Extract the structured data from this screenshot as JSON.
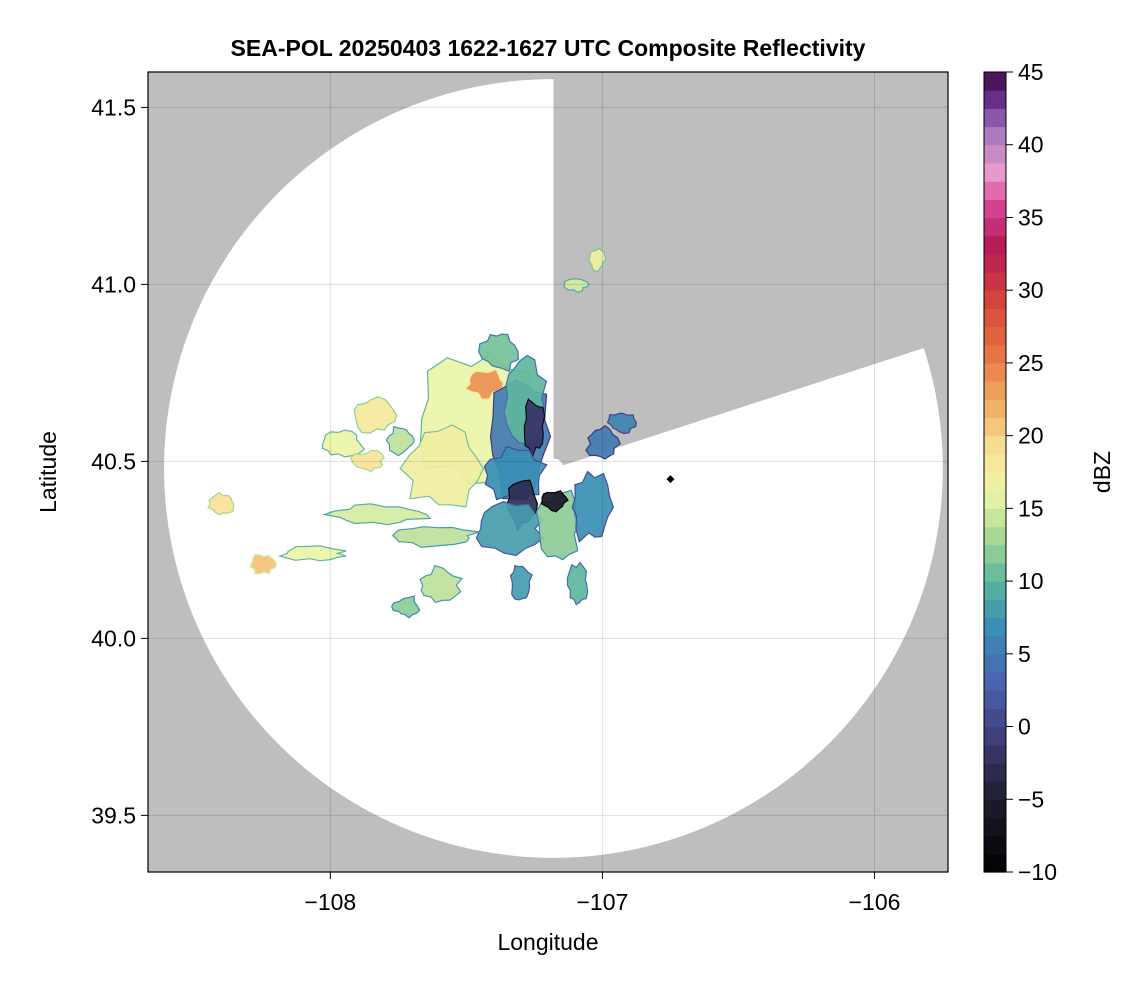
{
  "chart_data": {
    "type": "heatmap",
    "title": "SEA-POL 20250403 1622-1627 UTC Composite Reflectivity",
    "xlabel": "Longitude",
    "ylabel": "Latitude",
    "xlim": [
      -108.67,
      -105.73
    ],
    "ylim": [
      39.34,
      41.6
    ],
    "xticks": [
      -108,
      -107,
      -106
    ],
    "xtick_labels": [
      "−108",
      "−107",
      "−106"
    ],
    "yticks": [
      39.5,
      40.0,
      40.5,
      41.0,
      41.5
    ],
    "ytick_labels": [
      "39.5",
      "40.0",
      "40.5",
      "41.0",
      "41.5"
    ],
    "grid": true,
    "background_color": "#bebebe",
    "coverage_color": "#ffffff",
    "radar_center": [
      -107.18,
      40.48
    ],
    "radar_range_lat_deg": 1.1,
    "blocked_sectors": [
      {
        "from_point": [
          -106.84,
          41.52
        ],
        "to_point": [
          -107.14,
          40.49
        ]
      },
      {
        "from_point": [
          -106.05,
          41.12
        ],
        "to_point": [
          -107.18,
          40.5
        ]
      }
    ],
    "colorbar": {
      "label": "dBZ",
      "min": -10,
      "max": 45,
      "ticks": [
        -10,
        -5,
        0,
        5,
        10,
        15,
        20,
        25,
        30,
        35,
        40,
        45
      ],
      "tick_labels": [
        "−10",
        "−5",
        "0",
        "5",
        "10",
        "15",
        "20",
        "25",
        "30",
        "35",
        "40",
        "45"
      ],
      "step": 1.25,
      "colormap": "spectral-reversed",
      "color_stops": [
        {
          "v": -10,
          "c": "#000000"
        },
        {
          "v": -5,
          "c": "#1c1c2e"
        },
        {
          "v": -1,
          "c": "#3e3b74"
        },
        {
          "v": 3,
          "c": "#4a63b0"
        },
        {
          "v": 7,
          "c": "#3a8fb4"
        },
        {
          "v": 10,
          "c": "#5db69d"
        },
        {
          "v": 13,
          "c": "#a6d794"
        },
        {
          "v": 16,
          "c": "#ecf5a8"
        },
        {
          "v": 19,
          "c": "#f8e397"
        },
        {
          "v": 22,
          "c": "#f1b065"
        },
        {
          "v": 26,
          "c": "#e66f42"
        },
        {
          "v": 30,
          "c": "#cf3c3f"
        },
        {
          "v": 33,
          "c": "#b31a55"
        },
        {
          "v": 36,
          "c": "#d94699"
        },
        {
          "v": 38,
          "c": "#ea9ccb"
        },
        {
          "v": 41,
          "c": "#a376be"
        },
        {
          "v": 43,
          "c": "#6a318d"
        },
        {
          "v": 45,
          "c": "#3b0a46"
        }
      ]
    },
    "echo_regions": [
      {
        "lon": -107.45,
        "lat": 40.62,
        "rlon": 0.24,
        "rlat": 0.2,
        "dbz": 16
      },
      {
        "lon": -107.43,
        "lat": 40.72,
        "rlon": 0.07,
        "rlat": 0.04,
        "dbz": 24
      },
      {
        "lon": -107.58,
        "lat": 40.48,
        "rlon": 0.15,
        "rlat": 0.12,
        "dbz": 17
      },
      {
        "lon": -107.3,
        "lat": 40.57,
        "rlon": 0.12,
        "rlat": 0.18,
        "dbz": 5
      },
      {
        "lon": -107.29,
        "lat": 40.68,
        "rlon": 0.08,
        "rlat": 0.12,
        "dbz": 10
      },
      {
        "lon": -107.25,
        "lat": 40.6,
        "rlon": 0.04,
        "rlat": 0.08,
        "dbz": -2
      },
      {
        "lon": -107.38,
        "lat": 40.81,
        "rlon": 0.07,
        "rlat": 0.06,
        "dbz": 11
      },
      {
        "lon": -107.33,
        "lat": 40.46,
        "rlon": 0.12,
        "rlat": 0.08,
        "dbz": 7
      },
      {
        "lon": -107.3,
        "lat": 40.38,
        "rlon": 0.06,
        "rlat": 0.07,
        "dbz": -3
      },
      {
        "lon": -107.34,
        "lat": 40.31,
        "rlon": 0.12,
        "rlat": 0.07,
        "dbz": 8
      },
      {
        "lon": -107.16,
        "lat": 40.32,
        "rlon": 0.08,
        "rlat": 0.1,
        "dbz": 12
      },
      {
        "lon": -107.04,
        "lat": 40.37,
        "rlon": 0.08,
        "rlat": 0.1,
        "dbz": 7
      },
      {
        "lon": -107.18,
        "lat": 40.39,
        "rlon": 0.05,
        "rlat": 0.03,
        "dbz": -6
      },
      {
        "lon": -107.0,
        "lat": 40.55,
        "rlon": 0.06,
        "rlat": 0.05,
        "dbz": 5
      },
      {
        "lon": -106.93,
        "lat": 40.61,
        "rlon": 0.05,
        "rlat": 0.03,
        "dbz": 6
      },
      {
        "lon": -107.84,
        "lat": 40.63,
        "rlon": 0.08,
        "rlat": 0.05,
        "dbz": 18
      },
      {
        "lon": -107.74,
        "lat": 40.56,
        "rlon": 0.05,
        "rlat": 0.04,
        "dbz": 14
      },
      {
        "lon": -107.96,
        "lat": 40.55,
        "rlon": 0.08,
        "rlat": 0.04,
        "dbz": 16
      },
      {
        "lon": -107.86,
        "lat": 40.5,
        "rlon": 0.06,
        "rlat": 0.03,
        "dbz": 19
      },
      {
        "lon": -107.82,
        "lat": 40.35,
        "rlon": 0.18,
        "rlat": 0.03,
        "dbz": 15
      },
      {
        "lon": -107.63,
        "lat": 40.29,
        "rlon": 0.18,
        "rlat": 0.03,
        "dbz": 14
      },
      {
        "lon": -108.4,
        "lat": 40.38,
        "rlon": 0.05,
        "rlat": 0.03,
        "dbz": 19
      },
      {
        "lon": -108.25,
        "lat": 40.21,
        "rlon": 0.05,
        "rlat": 0.03,
        "dbz": 21
      },
      {
        "lon": -108.06,
        "lat": 40.24,
        "rlon": 0.12,
        "rlat": 0.02,
        "dbz": 16
      },
      {
        "lon": -107.6,
        "lat": 40.15,
        "rlon": 0.08,
        "rlat": 0.05,
        "dbz": 14
      },
      {
        "lon": -107.72,
        "lat": 40.09,
        "rlon": 0.05,
        "rlat": 0.03,
        "dbz": 12
      },
      {
        "lon": -107.09,
        "lat": 40.15,
        "rlon": 0.04,
        "rlat": 0.06,
        "dbz": 10
      },
      {
        "lon": -107.3,
        "lat": 40.16,
        "rlon": 0.04,
        "rlat": 0.05,
        "dbz": 8
      },
      {
        "lon": -107.02,
        "lat": 41.07,
        "rlon": 0.03,
        "rlat": 0.03,
        "dbz": 17
      },
      {
        "lon": -107.1,
        "lat": 41.0,
        "rlon": 0.05,
        "rlat": 0.02,
        "dbz": 15
      }
    ],
    "point_marker": {
      "lon": -106.75,
      "lat": 40.45,
      "color": "#000000"
    }
  }
}
